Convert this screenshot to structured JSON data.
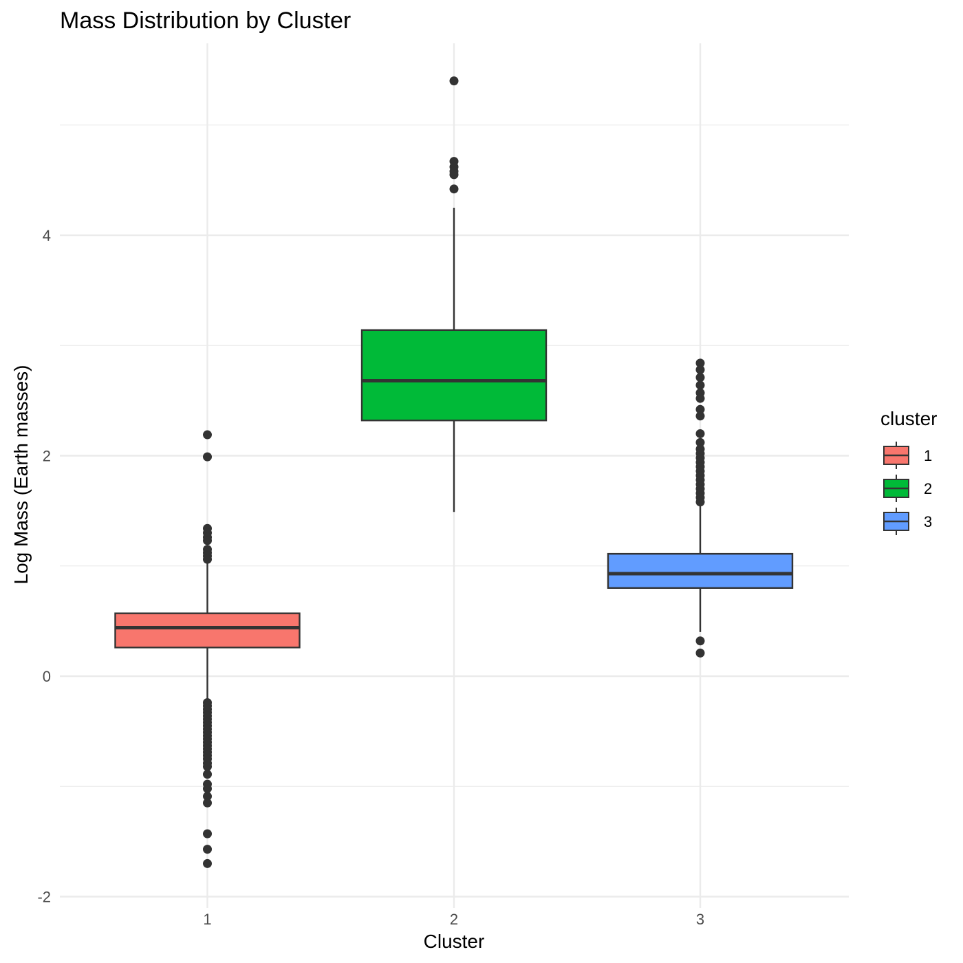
{
  "chart_data": {
    "type": "box",
    "title": "Mass Distribution by Cluster",
    "xlabel": "Cluster",
    "ylabel": "Log Mass (Earth masses)",
    "categories": [
      "1",
      "2",
      "3"
    ],
    "ylim": [
      -2.1,
      5.75
    ],
    "y_ticks": [
      -2,
      0,
      2,
      4
    ],
    "y_tick_labels": [
      "-2",
      "0",
      "2",
      "4"
    ],
    "grid": true,
    "legend": {
      "title": "cluster",
      "position": "right",
      "entries": [
        {
          "label": "1",
          "color": "#F8766D"
        },
        {
          "label": "2",
          "color": "#00BA38"
        },
        {
          "label": "3",
          "color": "#619CFF"
        }
      ]
    },
    "series": [
      {
        "category": "1",
        "color": "#F8766D",
        "whisker_low": -0.22,
        "q1": 0.26,
        "median": 0.44,
        "q3": 0.57,
        "whisker_high": 1.05,
        "outliers": [
          2.19,
          1.99,
          1.34,
          1.3,
          1.26,
          1.23,
          1.15,
          1.12,
          1.09,
          1.06,
          -0.24,
          -0.27,
          -0.3,
          -0.33,
          -0.36,
          -0.39,
          -0.42,
          -0.45,
          -0.48,
          -0.51,
          -0.54,
          -0.57,
          -0.6,
          -0.63,
          -0.66,
          -0.69,
          -0.72,
          -0.75,
          -0.79,
          -0.82,
          -0.89,
          -0.98,
          -1.02,
          -1.09,
          -1.15,
          -1.43,
          -1.57,
          -1.7
        ]
      },
      {
        "category": "2",
        "color": "#00BA38",
        "whisker_low": 1.49,
        "q1": 2.32,
        "median": 2.68,
        "q3": 3.14,
        "whisker_high": 4.25,
        "outliers": [
          5.4,
          4.67,
          4.62,
          4.58,
          4.55,
          4.42
        ]
      },
      {
        "category": "3",
        "color": "#619CFF",
        "whisker_low": 0.4,
        "q1": 0.8,
        "median": 0.93,
        "q3": 1.11,
        "whisker_high": 1.56,
        "outliers": [
          2.84,
          2.78,
          2.71,
          2.64,
          2.57,
          2.52,
          2.42,
          2.36,
          2.2,
          2.12,
          2.06,
          2.02,
          1.98,
          1.94,
          1.9,
          1.86,
          1.82,
          1.78,
          1.74,
          1.7,
          1.66,
          1.62,
          1.58,
          0.32,
          0.21
        ]
      }
    ]
  }
}
